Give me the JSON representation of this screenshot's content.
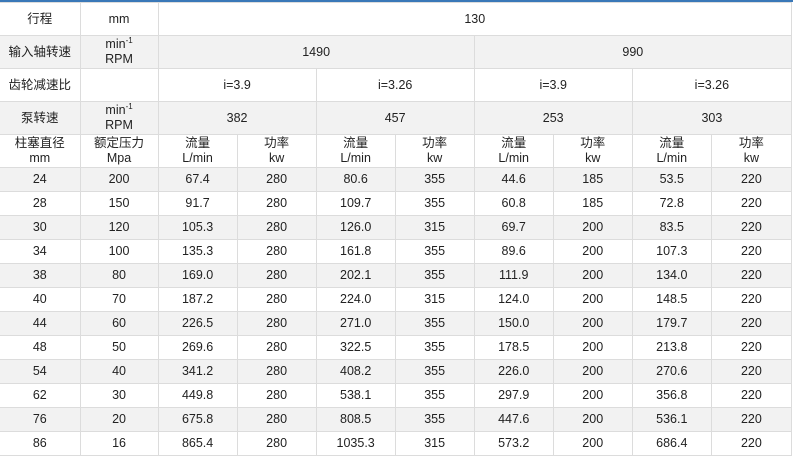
{
  "colors": {
    "accent_top_border": "#3a78b8",
    "alt_row": "#f2f2f2",
    "grid": "#dcdcdc"
  },
  "header": {
    "stroke": {
      "label": "行程",
      "unit": "mm",
      "value": "130"
    },
    "input_speed": {
      "label": "输入轴转速",
      "unit_main": "min",
      "unit_sup": "-1",
      "unit_line2": "RPM",
      "values": [
        "1490",
        "990"
      ]
    },
    "gear_ratio": {
      "label": "齿轮减速比",
      "values": [
        "i=3.9",
        "i=3.26",
        "i=3.9",
        "i=3.26"
      ]
    },
    "pump_speed": {
      "label": "泵转速",
      "unit_main": "min",
      "unit_sup": "-1",
      "unit_line2": "RPM",
      "values": [
        "382",
        "457",
        "253",
        "303"
      ]
    },
    "columns": {
      "diameter": [
        "柱塞直径",
        "mm"
      ],
      "pressure": [
        "额定压力",
        "Mpa"
      ],
      "flow": [
        "流量",
        "L/min"
      ],
      "power": [
        "功率",
        "kw"
      ]
    }
  },
  "rows": [
    [
      "24",
      "200",
      "67.4",
      "280",
      "80.6",
      "355",
      "44.6",
      "185",
      "53.5",
      "220"
    ],
    [
      "28",
      "150",
      "91.7",
      "280",
      "109.7",
      "355",
      "60.8",
      "185",
      "72.8",
      "220"
    ],
    [
      "30",
      "120",
      "105.3",
      "280",
      "126.0",
      "315",
      "69.7",
      "200",
      "83.5",
      "220"
    ],
    [
      "34",
      "100",
      "135.3",
      "280",
      "161.8",
      "355",
      "89.6",
      "200",
      "107.3",
      "220"
    ],
    [
      "38",
      "80",
      "169.0",
      "280",
      "202.1",
      "355",
      "111.9",
      "200",
      "134.0",
      "220"
    ],
    [
      "40",
      "70",
      "187.2",
      "280",
      "224.0",
      "315",
      "124.0",
      "200",
      "148.5",
      "220"
    ],
    [
      "44",
      "60",
      "226.5",
      "280",
      "271.0",
      "355",
      "150.0",
      "200",
      "179.7",
      "220"
    ],
    [
      "48",
      "50",
      "269.6",
      "280",
      "322.5",
      "355",
      "178.5",
      "200",
      "213.8",
      "220"
    ],
    [
      "54",
      "40",
      "341.2",
      "280",
      "408.2",
      "355",
      "226.0",
      "200",
      "270.6",
      "220"
    ],
    [
      "62",
      "30",
      "449.8",
      "280",
      "538.1",
      "355",
      "297.9",
      "200",
      "356.8",
      "220"
    ],
    [
      "76",
      "20",
      "675.8",
      "280",
      "808.5",
      "355",
      "447.6",
      "200",
      "536.1",
      "220"
    ],
    [
      "86",
      "16",
      "865.4",
      "280",
      "1035.3",
      "315",
      "573.2",
      "200",
      "686.4",
      "220"
    ]
  ]
}
